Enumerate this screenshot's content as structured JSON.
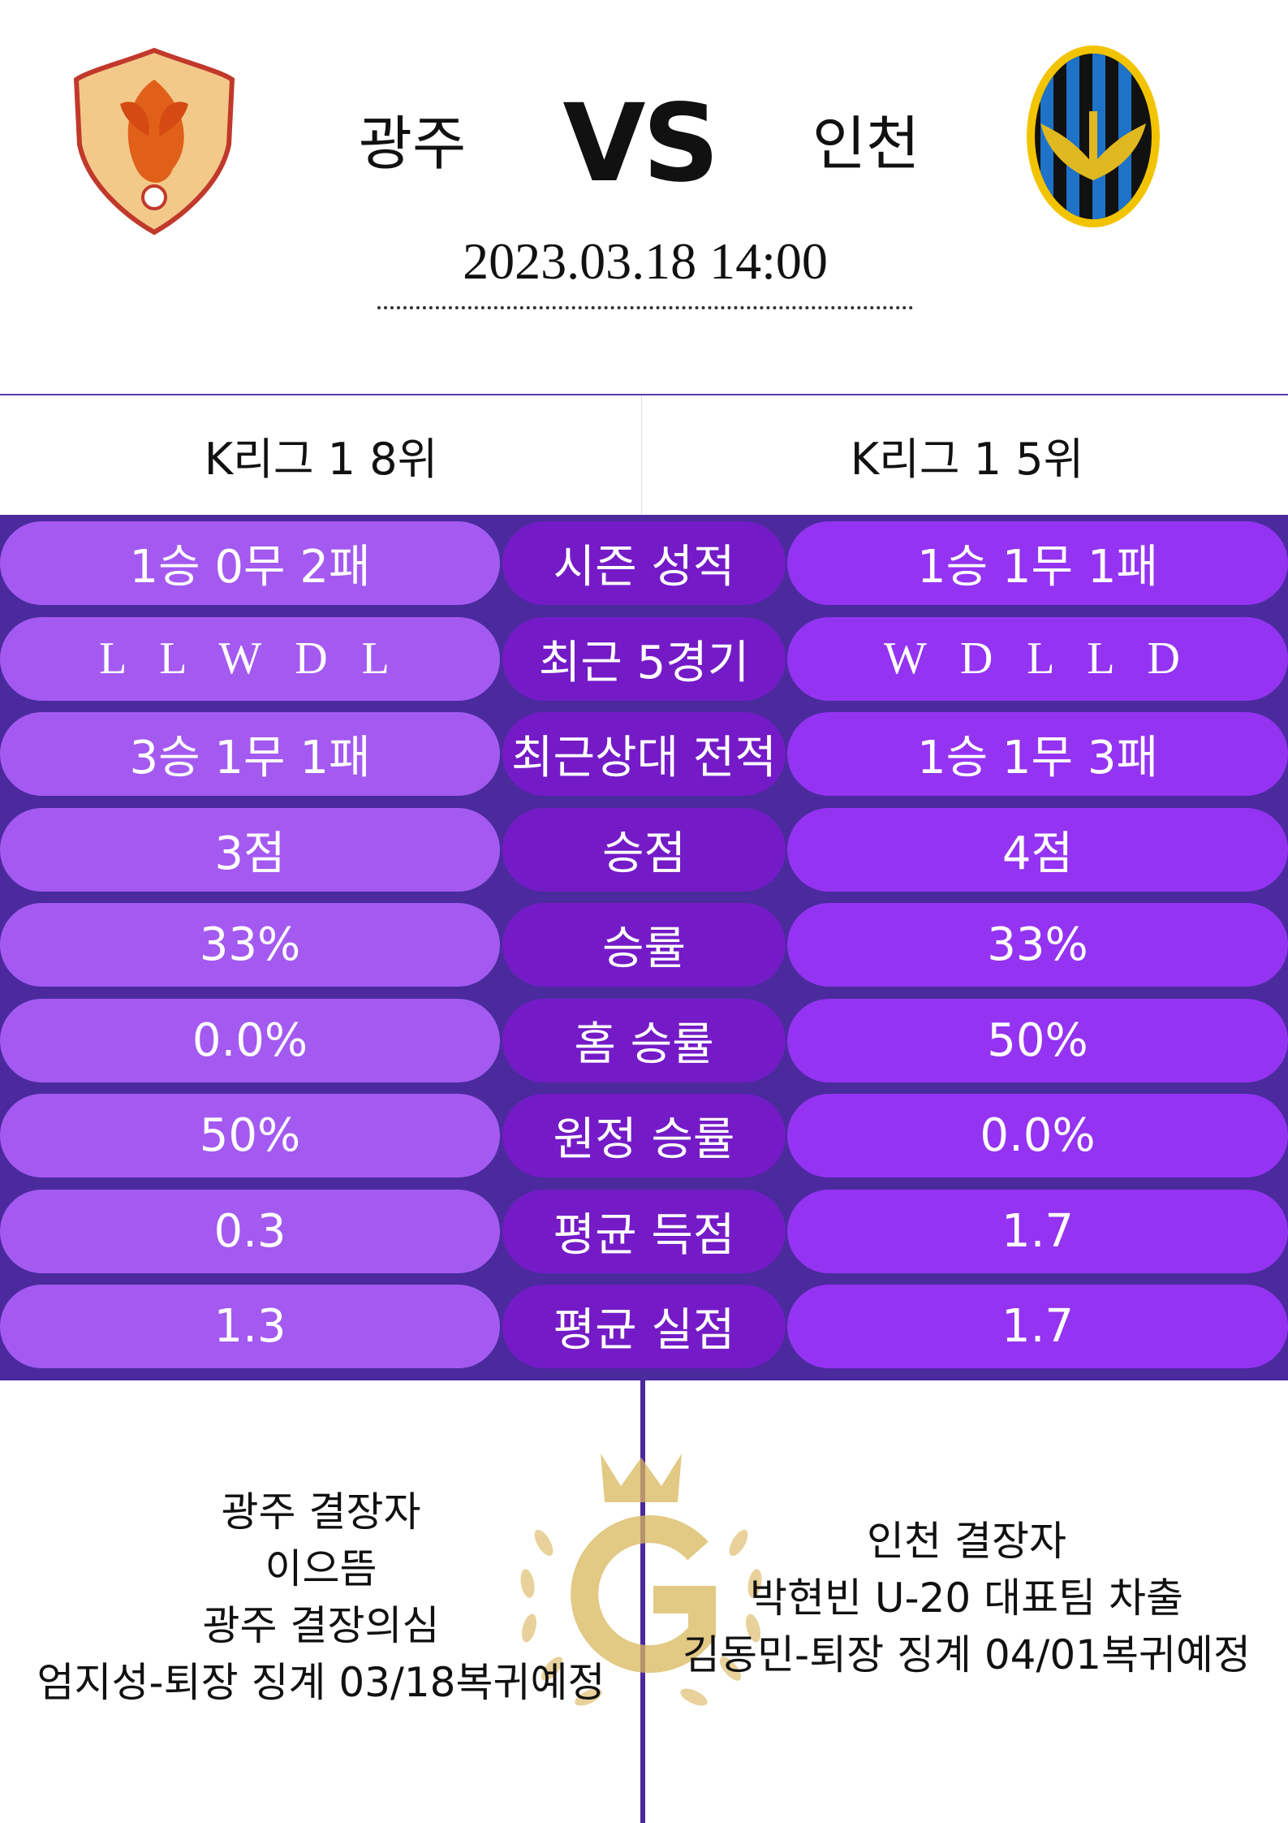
{
  "header": {
    "home": "광주",
    "vs": "VS",
    "away": "인천",
    "datetime": "2023.03.18  14:00"
  },
  "ranks": {
    "home": "K리그 1 8위",
    "away": "K리그 1 5위"
  },
  "stats": [
    [
      "1승 0무 2패",
      "시즌 성적",
      "1승 1무 1패"
    ],
    [
      "L L W D L",
      "최근 5경기",
      "W D L L D"
    ],
    [
      "3승 1무 1패",
      "최근상대 전적",
      "1승 1무 3패"
    ],
    [
      "3점",
      "승점",
      "4점"
    ],
    [
      "33%",
      "승률",
      "33%"
    ],
    [
      "0.0%",
      "홈 승률",
      "50%"
    ],
    [
      "50%",
      "원정 승률",
      "0.0%"
    ],
    [
      "0.3",
      "평균 득점",
      "1.7"
    ],
    [
      "1.3",
      "평균 실점",
      "1.7"
    ]
  ],
  "absentees": {
    "home": [
      "광주 결장자",
      "이으뜸",
      "광주 결장의심",
      "엄지성-퇴장 징계 03/18복귀예정"
    ],
    "away": [
      "인천 결장자",
      "박현빈 U-20 대표팀 차출",
      "김동민-퇴장 징계 04/01복귀예정"
    ]
  }
}
